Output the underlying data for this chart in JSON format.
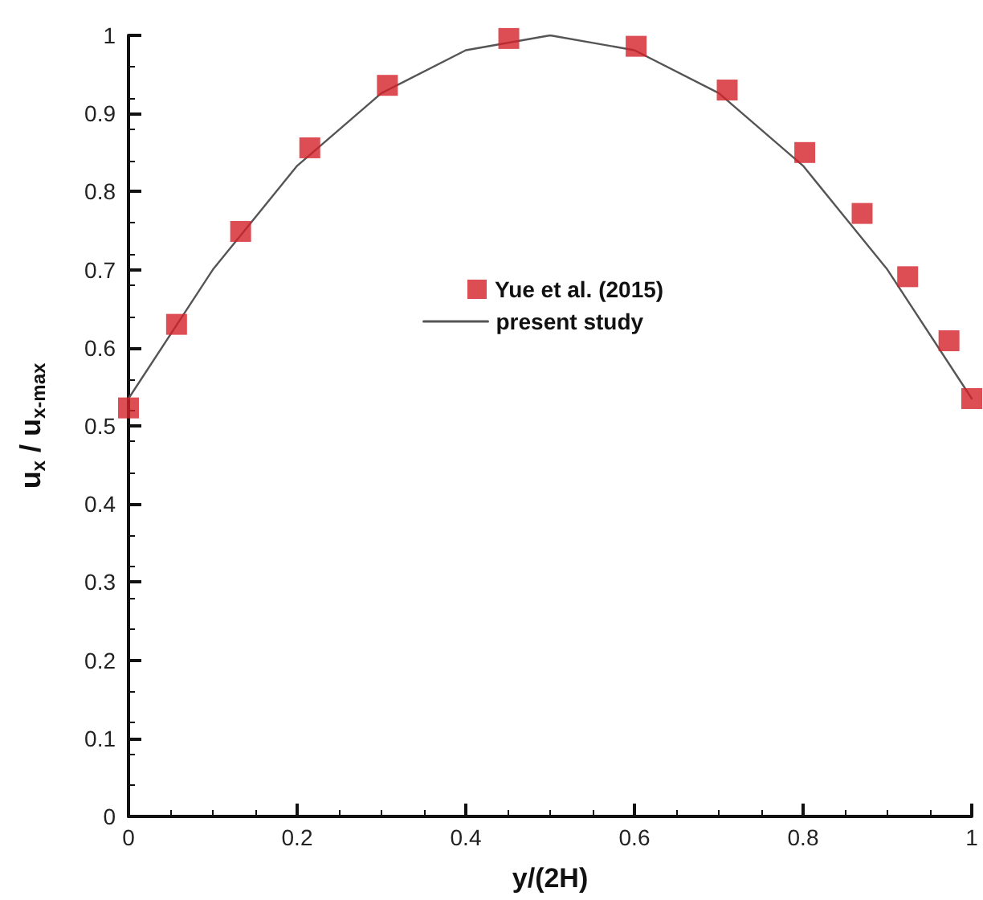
{
  "chart_data": {
    "type": "scatter",
    "xlabel": "y/(2H)",
    "ylabel": "u$_{x}$ / u$_{x-max}$",
    "xlim": [
      0,
      1
    ],
    "ylim": [
      0,
      1
    ],
    "xticks": [
      0,
      0.2,
      0.4,
      0.6,
      0.8,
      1
    ],
    "yticks": [
      0,
      0.1,
      0.2,
      0.3,
      0.4,
      0.5,
      0.6,
      0.7,
      0.8,
      0.9,
      1
    ],
    "grid": false,
    "legend": "center",
    "series": [
      {
        "name": "Yue et al. (2015)",
        "type": "scatter",
        "marker": "square",
        "color": "#d42029",
        "x": [
          0,
          0.057,
          0.133,
          0.215,
          0.307,
          0.451,
          0.602,
          0.71,
          0.802,
          0.87,
          0.924,
          0.973,
          1
        ],
        "values": [
          0.523,
          0.63,
          0.749,
          0.856,
          0.936,
          0.996,
          0.986,
          0.93,
          0.85,
          0.772,
          0.691,
          0.609,
          0.535
        ]
      },
      {
        "name": "present study",
        "type": "line",
        "marker": "none",
        "line_style": "solid",
        "color": "#555555",
        "x": [
          0,
          0.1,
          0.2,
          0.3,
          0.4,
          0.5,
          0.6,
          0.7,
          0.8,
          0.9,
          1
        ],
        "values": [
          0.535,
          0.7,
          0.833,
          0.926,
          0.981,
          1,
          0.981,
          0.926,
          0.833,
          0.7,
          0.535
        ]
      }
    ]
  }
}
